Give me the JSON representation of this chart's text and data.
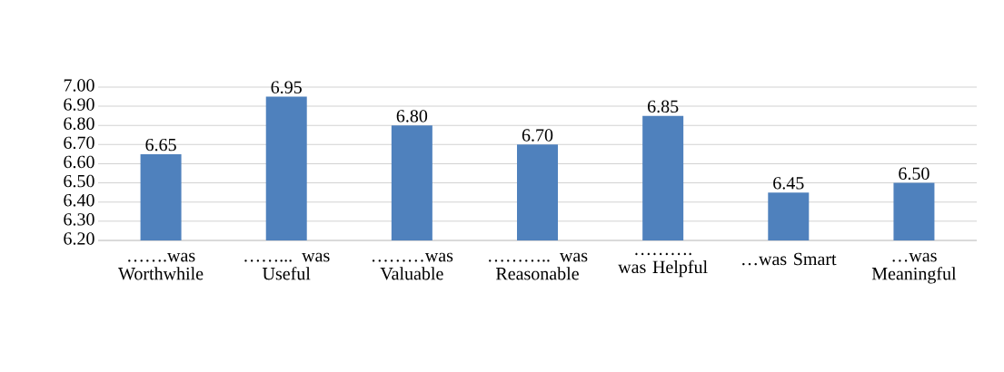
{
  "chart_data": {
    "type": "bar",
    "categories": [
      "…….was Worthwhile",
      "……... was Useful",
      "………was Valuable",
      "……….. was Reasonable",
      "………. was Helpful",
      "…was Smart",
      "…was Meaningful"
    ],
    "values": [
      6.65,
      6.95,
      6.8,
      6.7,
      6.85,
      6.45,
      6.5
    ],
    "value_labels": [
      "6.65",
      "6.95",
      "6.80",
      "6.70",
      "6.85",
      "6.45",
      "6.50"
    ],
    "color": "#4f81bd",
    "ylim": [
      6.2,
      7.0
    ],
    "yticks": [
      {
        "value": 6.2,
        "label": "6.20"
      },
      {
        "value": 6.3,
        "label": "6.30"
      },
      {
        "value": 6.4,
        "label": "6.40"
      },
      {
        "value": 6.5,
        "label": "6.50"
      },
      {
        "value": 6.6,
        "label": "6.60"
      },
      {
        "value": 6.7,
        "label": "6.70"
      },
      {
        "value": 6.8,
        "label": "6.80"
      },
      {
        "value": 6.9,
        "label": "6.90"
      },
      {
        "value": 7.0,
        "label": "7.00"
      }
    ],
    "grid": "y"
  }
}
